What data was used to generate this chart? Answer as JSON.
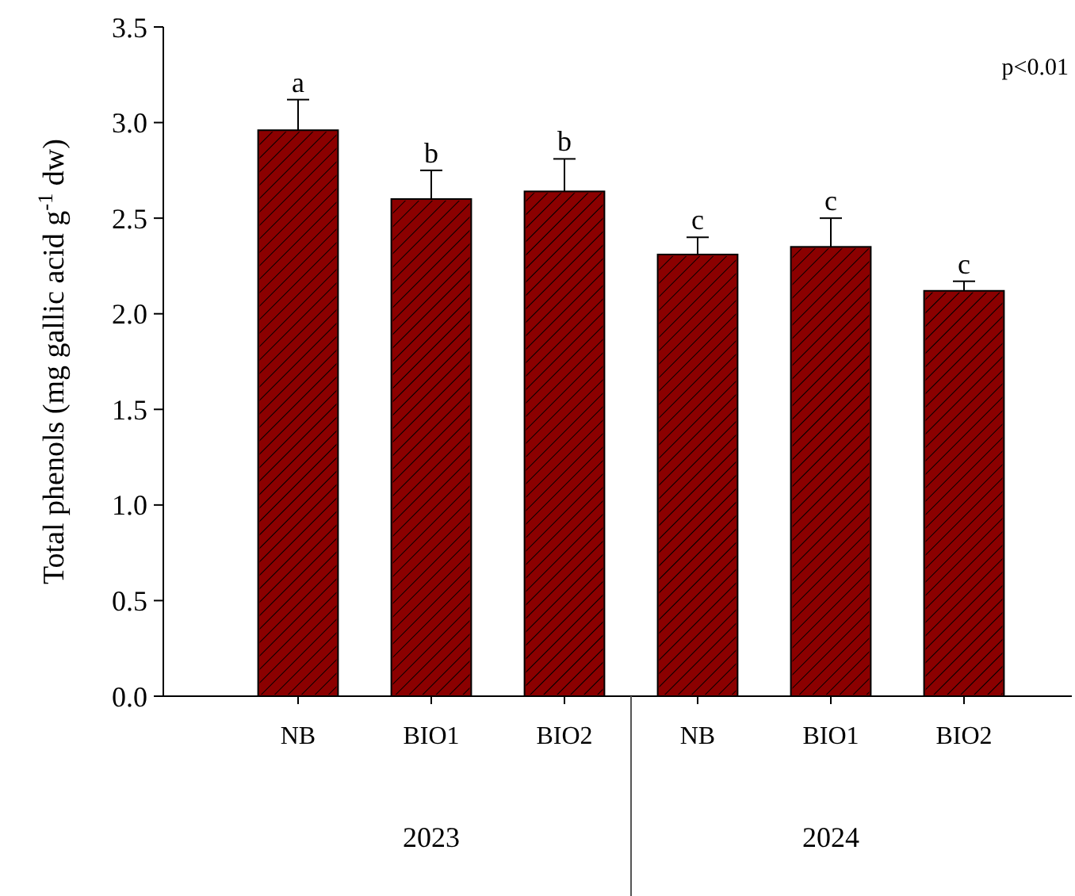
{
  "chart_data": {
    "type": "bar",
    "ylabel": "Total phenols (mg gallic acid g$^{-1}$ dw)",
    "categories": [
      "NB",
      "BIO1",
      "BIO2",
      "NB",
      "BIO1",
      "BIO2"
    ],
    "values": [
      2.96,
      2.6,
      2.64,
      2.31,
      2.35,
      2.12
    ],
    "errors": [
      [
        2.96,
        3.12
      ],
      [
        2.6,
        2.75
      ],
      [
        2.64,
        2.81
      ],
      [
        2.31,
        2.4
      ],
      [
        2.35,
        2.5
      ],
      [
        2.12,
        2.17
      ]
    ],
    "color": "#8b0000",
    "ylim": [
      0,
      3.5
    ],
    "yticks": [
      {
        "value": 0,
        "label": "0.0"
      },
      {
        "value": 0.5,
        "label": "0.5"
      },
      {
        "value": 1,
        "label": "1.0"
      },
      {
        "value": 1.5,
        "label": "1.5"
      },
      {
        "value": 2,
        "label": "2.0"
      },
      {
        "value": 2.5,
        "label": "2.5"
      },
      {
        "value": 3,
        "label": "3.0"
      },
      {
        "value": 3.5,
        "label": "3.5"
      }
    ],
    "grid": false,
    "annotations": [
      "a",
      "b",
      "b",
      "c",
      "c",
      "c",
      "p<0.01",
      "2023",
      "2024"
    ]
  }
}
